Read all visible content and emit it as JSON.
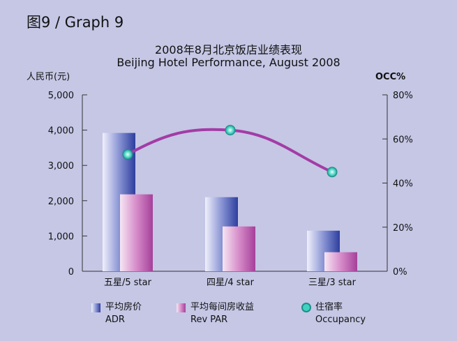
{
  "graph_label": "图9 / Graph 9",
  "chart_data": {
    "type": "bar",
    "title": "2008年8月北京饭店业绩表现",
    "subtitle": "Beijing Hotel Performance, August 2008",
    "ylabel": "人民币(元)",
    "ylabel_right": "OCC%",
    "categories": [
      "五星/5 star",
      "四星/4 star",
      "三星/3 star"
    ],
    "ylim": [
      0,
      5000
    ],
    "yticks": [
      "0",
      "1,000",
      "2,000",
      "3,000",
      "4,000",
      "5,000"
    ],
    "y2lim": [
      0,
      80
    ],
    "y2ticks": [
      "0%",
      "20%",
      "40%",
      "60%",
      "80%"
    ],
    "series": [
      {
        "name": "平均房价 ADR",
        "kind": "bar",
        "axis": "left",
        "values": [
          3920,
          2100,
          1150
        ],
        "color": "#2d3e9e"
      },
      {
        "name": "平均每间房收益 Rev PAR",
        "kind": "bar",
        "axis": "left",
        "values": [
          2180,
          1270,
          540
        ],
        "color": "#b04ea2"
      },
      {
        "name": "住宿率 Occupancy",
        "kind": "line",
        "axis": "right",
        "values": [
          53,
          64,
          45
        ],
        "color": "#a33ca6",
        "marker_color": "#3fd2c0"
      }
    ]
  },
  "legend": {
    "adr_zh": "平均房价",
    "adr_en": "ADR",
    "revpar_zh": "平均每间房收益",
    "revpar_en": "Rev PAR",
    "occ_zh": "住宿率",
    "occ_en": "Occupancy"
  }
}
